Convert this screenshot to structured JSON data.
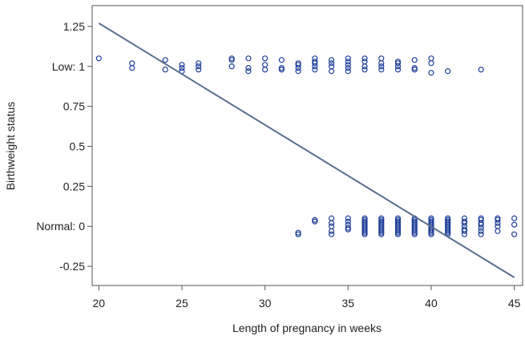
{
  "chart_data": {
    "type": "scatter",
    "xlabel": "Length of pregnancy in weeks",
    "ylabel": "Birthweight status",
    "xlim": [
      19.6,
      45.5
    ],
    "ylim": [
      -0.37,
      1.38
    ],
    "grid": false,
    "legend": "none",
    "x_ticks": [
      {
        "value": 20,
        "label": "20"
      },
      {
        "value": 25,
        "label": "25"
      },
      {
        "value": 30,
        "label": "30"
      },
      {
        "value": 35,
        "label": "35"
      },
      {
        "value": 40,
        "label": "40"
      },
      {
        "value": 45,
        "label": "45"
      }
    ],
    "y_ticks": [
      {
        "value": 1.25,
        "label": "1.25"
      },
      {
        "value": 1,
        "label": "Low: 1"
      },
      {
        "value": 0.75,
        "label": "0.75"
      },
      {
        "value": 0.5,
        "label": "0.5"
      },
      {
        "value": 0.25,
        "label": "0.25"
      },
      {
        "value": 0,
        "label": "Normal: 0"
      },
      {
        "value": -0.25,
        "label": "-0.25"
      }
    ],
    "marker_color": "#1f3f99",
    "line_color": "#5b6f8f",
    "axis_color": "#555555",
    "fit_line": {
      "x": [
        20,
        45
      ],
      "y": [
        1.27,
        -0.32
      ]
    },
    "series": [
      {
        "points": [
          [
            20,
            1.05
          ],
          [
            22,
            1.02
          ],
          [
            22,
            0.99
          ],
          [
            24,
            1.04
          ],
          [
            24,
            0.98
          ],
          [
            25,
            1.01
          ],
          [
            25,
            0.99
          ],
          [
            25,
            0.97
          ],
          [
            26,
            1.02
          ],
          [
            26,
            1.0
          ],
          [
            26,
            0.98
          ],
          [
            28,
            1.05
          ],
          [
            28,
            1.04
          ],
          [
            28,
            1.0
          ],
          [
            29,
            1.05
          ],
          [
            29,
            0.99
          ],
          [
            29,
            0.97
          ],
          [
            30,
            1.05
          ],
          [
            30,
            1.01
          ],
          [
            30,
            0.98
          ],
          [
            31,
            1.04
          ],
          [
            31,
            0.99
          ],
          [
            31,
            0.98
          ],
          [
            32,
            1.02
          ],
          [
            32,
            1.01
          ],
          [
            32,
            0.99
          ],
          [
            32,
            0.97
          ],
          [
            33,
            1.05
          ],
          [
            33,
            1.03
          ],
          [
            33,
            1.02
          ],
          [
            33,
            1.0
          ],
          [
            33,
            0.98
          ],
          [
            34,
            1.04
          ],
          [
            34,
            1.02
          ],
          [
            34,
            1.0
          ],
          [
            34,
            0.97
          ],
          [
            35,
            1.05
          ],
          [
            35,
            1.03
          ],
          [
            35,
            1.01
          ],
          [
            35,
            0.99
          ],
          [
            35,
            0.97
          ],
          [
            36,
            1.05
          ],
          [
            36,
            1.03
          ],
          [
            36,
            1.0
          ],
          [
            36,
            0.98
          ],
          [
            37,
            1.05
          ],
          [
            37,
            1.02
          ],
          [
            37,
            1.0
          ],
          [
            37,
            0.98
          ],
          [
            38,
            1.03
          ],
          [
            38,
            1.02
          ],
          [
            38,
            1.0
          ],
          [
            38,
            0.98
          ],
          [
            39,
            1.04
          ],
          [
            39,
            0.99
          ],
          [
            39,
            0.98
          ],
          [
            40,
            1.05
          ],
          [
            40,
            1.02
          ],
          [
            40,
            0.96
          ],
          [
            41,
            0.97
          ],
          [
            43,
            0.98
          ],
          [
            32,
            -0.04
          ],
          [
            32,
            -0.05
          ],
          [
            33,
            0.04
          ],
          [
            33,
            0.03
          ],
          [
            34,
            0.05
          ],
          [
            34,
            0.02
          ],
          [
            34,
            0.0
          ],
          [
            34,
            -0.03
          ],
          [
            34,
            -0.05
          ],
          [
            35,
            0.05
          ],
          [
            35,
            0.03
          ],
          [
            35,
            0.01
          ],
          [
            35,
            -0.01
          ],
          [
            35,
            -0.02
          ],
          [
            36,
            0.05
          ],
          [
            36,
            0.04
          ],
          [
            36,
            0.03
          ],
          [
            36,
            0.02
          ],
          [
            36,
            0.01
          ],
          [
            36,
            0.0
          ],
          [
            36,
            -0.01
          ],
          [
            36,
            -0.02
          ],
          [
            36,
            -0.03
          ],
          [
            36,
            -0.04
          ],
          [
            36,
            -0.05
          ],
          [
            37,
            0.05
          ],
          [
            37,
            0.04
          ],
          [
            37,
            0.03
          ],
          [
            37,
            0.02
          ],
          [
            37,
            0.01
          ],
          [
            37,
            0.0
          ],
          [
            37,
            -0.01
          ],
          [
            37,
            -0.02
          ],
          [
            37,
            -0.03
          ],
          [
            37,
            -0.04
          ],
          [
            37,
            -0.05
          ],
          [
            38,
            0.05
          ],
          [
            38,
            0.04
          ],
          [
            38,
            0.03
          ],
          [
            38,
            0.02
          ],
          [
            38,
            0.01
          ],
          [
            38,
            0.0
          ],
          [
            38,
            -0.01
          ],
          [
            38,
            -0.02
          ],
          [
            38,
            -0.03
          ],
          [
            38,
            -0.04
          ],
          [
            38,
            -0.05
          ],
          [
            39,
            0.05
          ],
          [
            39,
            0.04
          ],
          [
            39,
            0.03
          ],
          [
            39,
            0.02
          ],
          [
            39,
            0.01
          ],
          [
            39,
            0.0
          ],
          [
            39,
            -0.01
          ],
          [
            39,
            -0.02
          ],
          [
            39,
            -0.03
          ],
          [
            39,
            -0.04
          ],
          [
            39,
            -0.05
          ],
          [
            40,
            0.05
          ],
          [
            40,
            0.04
          ],
          [
            40,
            0.03
          ],
          [
            40,
            0.02
          ],
          [
            40,
            0.01
          ],
          [
            40,
            0.0
          ],
          [
            40,
            -0.01
          ],
          [
            40,
            -0.02
          ],
          [
            40,
            -0.03
          ],
          [
            40,
            -0.04
          ],
          [
            40,
            -0.05
          ],
          [
            41,
            0.05
          ],
          [
            41,
            0.04
          ],
          [
            41,
            0.03
          ],
          [
            41,
            0.02
          ],
          [
            41,
            0.01
          ],
          [
            41,
            0.0
          ],
          [
            41,
            -0.01
          ],
          [
            41,
            -0.02
          ],
          [
            41,
            -0.03
          ],
          [
            41,
            -0.04
          ],
          [
            41,
            -0.05
          ],
          [
            42,
            0.05
          ],
          [
            42,
            0.03
          ],
          [
            42,
            0.02
          ],
          [
            42,
            0.0
          ],
          [
            42,
            -0.02
          ],
          [
            42,
            -0.03
          ],
          [
            42,
            -0.05
          ],
          [
            43,
            0.05
          ],
          [
            43,
            0.04
          ],
          [
            43,
            0.02
          ],
          [
            43,
            0.01
          ],
          [
            43,
            -0.01
          ],
          [
            43,
            -0.03
          ],
          [
            43,
            -0.05
          ],
          [
            44,
            0.05
          ],
          [
            44,
            0.04
          ],
          [
            44,
            0.02
          ],
          [
            44,
            0.0
          ],
          [
            44,
            -0.03
          ],
          [
            45,
            0.05
          ],
          [
            45,
            0.01
          ],
          [
            45,
            -0.05
          ]
        ]
      }
    ]
  }
}
